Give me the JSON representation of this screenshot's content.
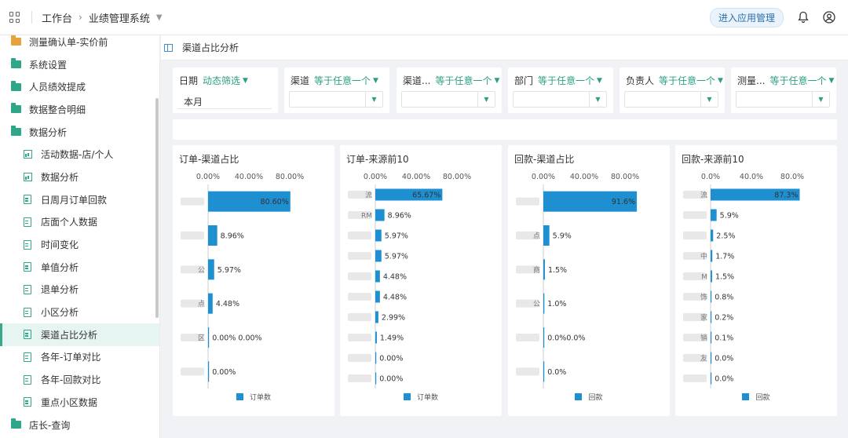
{
  "topbar": {
    "workspace": "工作台",
    "system": "业绩管理系统",
    "enter_btn": "进入应用管理"
  },
  "sidebar": {
    "items": [
      {
        "label": "测量确认单-实价前",
        "type": "folder-orange",
        "child": false
      },
      {
        "label": "系统设置",
        "type": "folder",
        "child": false
      },
      {
        "label": "人员绩效提成",
        "type": "folder",
        "child": false
      },
      {
        "label": "数据整合明细",
        "type": "folder",
        "child": false
      },
      {
        "label": "数据分析",
        "type": "folder",
        "child": false
      },
      {
        "label": "活动数据-店/个人",
        "type": "chart",
        "child": true
      },
      {
        "label": "数据分析",
        "type": "chart",
        "child": true
      },
      {
        "label": "日周月订单回款",
        "type": "doc",
        "child": true
      },
      {
        "label": "店面个人数据",
        "type": "doc",
        "child": true
      },
      {
        "label": "时间变化",
        "type": "doc",
        "child": true
      },
      {
        "label": "单值分析",
        "type": "doc",
        "child": true
      },
      {
        "label": "退单分析",
        "type": "doc",
        "child": true
      },
      {
        "label": "小区分析",
        "type": "doc",
        "child": true
      },
      {
        "label": "渠道占比分析",
        "type": "doc",
        "child": true,
        "active": true
      },
      {
        "label": "各年-订单对比",
        "type": "doc",
        "child": true
      },
      {
        "label": "各年-回款对比",
        "type": "doc",
        "child": true
      },
      {
        "label": "重点小区数据",
        "type": "doc",
        "child": true
      },
      {
        "label": "店长-查询",
        "type": "folder",
        "child": false
      }
    ]
  },
  "page": {
    "title": "渠道占比分析"
  },
  "filters": [
    {
      "label": "日期",
      "op": "动态筛选",
      "value": "本月"
    },
    {
      "label": "渠道",
      "op": "等于任意一个",
      "value": ""
    },
    {
      "label": "渠道...",
      "op": "等于任意一个",
      "value": ""
    },
    {
      "label": "部门",
      "op": "等于任意一个",
      "value": ""
    },
    {
      "label": "负责人",
      "op": "等于任意一个",
      "value": ""
    },
    {
      "label": "测量...",
      "op": "等于任意一个",
      "value": ""
    }
  ],
  "colors": {
    "bar": "#1e8fd0",
    "accent": "#2c9f86"
  },
  "chart_data": [
    {
      "type": "bar",
      "title": "订单-渠道占比",
      "axis_ticks": [
        "0.00%",
        "40.00%",
        "80.00%"
      ],
      "categories": [
        "",
        "",
        "",
        "",
        "",
        ""
      ],
      "series": [
        {
          "name": "订单数",
          "values": [
            80.6,
            8.96,
            5.97,
            4.48,
            0.0,
            0.0
          ]
        }
      ],
      "labels": [
        "80.60%",
        "8.96%",
        "5.97%",
        "4.48%",
        "0.00% 0.00%",
        "0.00%"
      ],
      "category_fragments": [
        "",
        "",
        "公",
        "点",
        "区",
        ""
      ],
      "xlim": [
        0,
        100
      ]
    },
    {
      "type": "bar",
      "title": "订单-来源前10",
      "axis_ticks": [
        "0.00%",
        "40.00%",
        "80.00%"
      ],
      "categories": [
        "",
        "",
        "",
        "",
        "",
        "",
        "",
        "",
        "",
        ""
      ],
      "series": [
        {
          "name": "订单数",
          "values": [
            65.67,
            8.96,
            5.97,
            5.97,
            4.48,
            4.48,
            2.99,
            1.49,
            0.0,
            0.0
          ]
        }
      ],
      "labels": [
        "65.67%",
        "8.96%",
        "5.97%",
        "5.97%",
        "4.48%",
        "4.48%",
        "2.99%",
        "1.49%",
        "0.00%",
        "0.00%"
      ],
      "category_fragments": [
        "流",
        "RM",
        "",
        "",
        "",
        "",
        "",
        "",
        "",
        ""
      ],
      "xlim": [
        0,
        100
      ]
    },
    {
      "type": "bar",
      "title": "回款-渠道占比",
      "axis_ticks": [
        "0.00%",
        "40.00%",
        "80.00%"
      ],
      "categories": [
        "",
        "",
        "",
        "",
        "",
        ""
      ],
      "series": [
        {
          "name": "回款",
          "values": [
            91.6,
            5.9,
            1.5,
            1.0,
            0.0,
            0.0
          ]
        }
      ],
      "labels": [
        "91.6%",
        "5.9%",
        "1.5%",
        "1.0%",
        "0.0%0.0%",
        "0.0%"
      ],
      "category_fragments": [
        "",
        "点",
        "商",
        "公",
        "",
        ""
      ],
      "xlim": [
        0,
        100
      ]
    },
    {
      "type": "bar",
      "title": "回款-来源前10",
      "axis_ticks": [
        "0.0%",
        "40.0%",
        "80.0%"
      ],
      "categories": [
        "",
        "",
        "",
        "",
        "",
        "",
        "",
        "",
        "",
        ""
      ],
      "series": [
        {
          "name": "回款",
          "values": [
            87.3,
            5.9,
            2.5,
            1.7,
            1.5,
            0.8,
            0.2,
            0.1,
            0.0,
            0.0
          ]
        }
      ],
      "labels": [
        "87.3%",
        "5.9%",
        "2.5%",
        "1.7%",
        "1.5%",
        "0.8%",
        "0.2%",
        "0.1%",
        "0.0%",
        "0.0%"
      ],
      "category_fragments": [
        "流",
        "",
        "",
        "中",
        "M",
        "饰",
        "家",
        "销",
        "友",
        ""
      ],
      "xlim": [
        0,
        100
      ]
    }
  ]
}
